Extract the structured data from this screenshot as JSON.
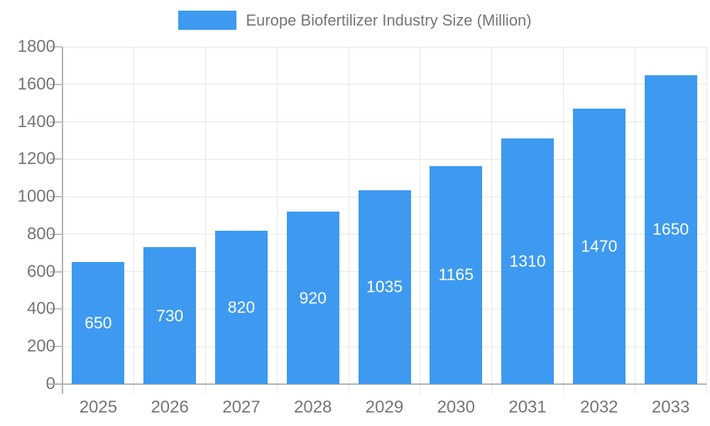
{
  "legend": {
    "label": "Europe Biofertilizer Industry Size (Million)"
  },
  "chart_data": {
    "type": "bar",
    "title": "Europe Biofertilizer Industry Size (Million)",
    "categories": [
      "2025",
      "2026",
      "2027",
      "2028",
      "2029",
      "2030",
      "2031",
      "2032",
      "2033"
    ],
    "values": [
      650,
      730,
      820,
      920,
      1035,
      1165,
      1310,
      1470,
      1650
    ],
    "xlabel": "",
    "ylabel": "",
    "ylim": [
      0,
      1800
    ],
    "ytick_step": 200,
    "grid": "on",
    "legend_position": "top-center",
    "bar_color": "#3D9AF0",
    "value_label_color": "#FFFFFF",
    "axis_text_color": "#757575",
    "gridline_color": "#E6E6E6",
    "axis_line_color": "#B3B3B3",
    "tick_color": "#C2C2C2",
    "background": "#FFFFFF"
  }
}
